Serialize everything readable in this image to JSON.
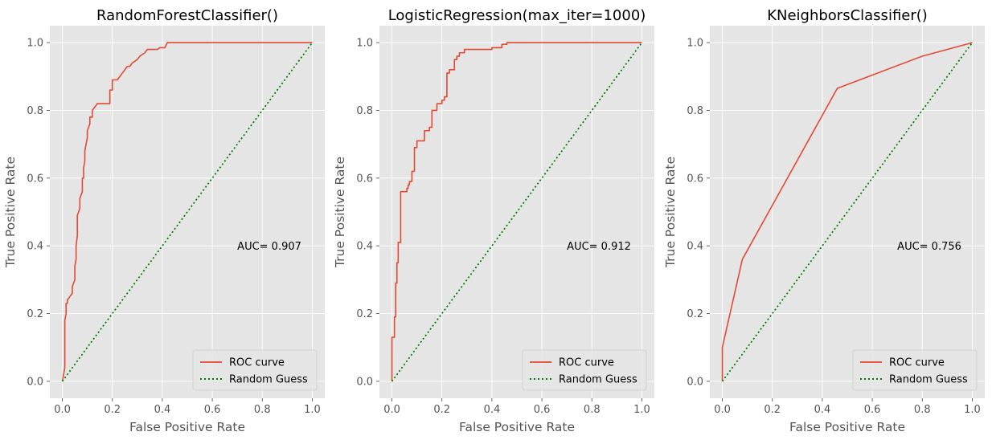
{
  "chart_data": [
    {
      "type": "line",
      "title": "RandomForestClassifier()",
      "xlabel": "False Positive Rate",
      "ylabel": "True Positive Rate",
      "xlim": [
        -0.05,
        1.05
      ],
      "ylim": [
        -0.05,
        1.05
      ],
      "xticks": [
        "0.0",
        "0.2",
        "0.4",
        "0.6",
        "0.8",
        "1.0"
      ],
      "yticks": [
        "0.0",
        "0.2",
        "0.4",
        "0.6",
        "0.8",
        "1.0"
      ],
      "grid": true,
      "legend_position": "lower-right",
      "annotation": "AUC= 0.907",
      "auc": 0.907,
      "series": [
        {
          "name": "ROC curve",
          "style": "solid",
          "color": "#e24a33",
          "x": [
            0,
            0.005,
            0.01,
            0.01,
            0.015,
            0.015,
            0.02,
            0.02,
            0.04,
            0.04,
            0.05,
            0.05,
            0.055,
            0.055,
            0.06,
            0.06,
            0.065,
            0.065,
            0.07,
            0.07,
            0.08,
            0.08,
            0.085,
            0.085,
            0.09,
            0.09,
            0.1,
            0.1,
            0.11,
            0.11,
            0.12,
            0.12,
            0.13,
            0.14,
            0.16,
            0.18,
            0.19,
            0.19,
            0.2,
            0.2,
            0.22,
            0.23,
            0.24,
            0.26,
            0.27,
            0.28,
            0.3,
            0.31,
            0.33,
            0.34,
            0.38,
            0.39,
            0.41,
            0.42,
            0.43,
            0.5,
            0.6,
            0.8,
            1.0
          ],
          "y": [
            0,
            0.02,
            0.04,
            0.18,
            0.2,
            0.23,
            0.23,
            0.24,
            0.26,
            0.28,
            0.3,
            0.34,
            0.36,
            0.4,
            0.43,
            0.49,
            0.5,
            0.5,
            0.51,
            0.54,
            0.56,
            0.6,
            0.6,
            0.63,
            0.65,
            0.68,
            0.72,
            0.74,
            0.76,
            0.78,
            0.78,
            0.8,
            0.81,
            0.82,
            0.82,
            0.82,
            0.82,
            0.86,
            0.86,
            0.89,
            0.89,
            0.9,
            0.91,
            0.93,
            0.93,
            0.94,
            0.95,
            0.96,
            0.97,
            0.98,
            0.98,
            0.985,
            0.985,
            1.0,
            1.0,
            1.0,
            1.0,
            1.0,
            1.0
          ]
        },
        {
          "name": "Random Guess",
          "style": "dotted",
          "color": "#008000",
          "x": [
            0,
            1
          ],
          "y": [
            0,
            1
          ]
        }
      ]
    },
    {
      "type": "line",
      "title": "LogisticRegression(max_iter=1000)",
      "xlabel": "False Positive Rate",
      "ylabel": "True Positive Rate",
      "xlim": [
        -0.05,
        1.05
      ],
      "ylim": [
        -0.05,
        1.05
      ],
      "xticks": [
        "0.0",
        "0.2",
        "0.4",
        "0.6",
        "0.8",
        "1.0"
      ],
      "yticks": [
        "0.0",
        "0.2",
        "0.4",
        "0.6",
        "0.8",
        "1.0"
      ],
      "grid": true,
      "legend_position": "lower-right",
      "annotation": "AUC= 0.912",
      "auc": 0.912,
      "series": [
        {
          "name": "ROC curve",
          "style": "solid",
          "color": "#e24a33",
          "x": [
            0,
            0,
            0.01,
            0.01,
            0.015,
            0.015,
            0.02,
            0.02,
            0.025,
            0.025,
            0.035,
            0.035,
            0.04,
            0.04,
            0.06,
            0.06,
            0.065,
            0.065,
            0.07,
            0.07,
            0.08,
            0.08,
            0.09,
            0.09,
            0.1,
            0.1,
            0.11,
            0.11,
            0.13,
            0.13,
            0.15,
            0.15,
            0.16,
            0.16,
            0.17,
            0.17,
            0.18,
            0.18,
            0.2,
            0.2,
            0.21,
            0.21,
            0.22,
            0.22,
            0.23,
            0.23,
            0.25,
            0.25,
            0.26,
            0.26,
            0.27,
            0.27,
            0.29,
            0.29,
            0.3,
            0.3,
            0.4,
            0.4,
            0.44,
            0.44,
            0.46,
            0.46,
            0.6,
            0.8,
            1.0
          ],
          "y": [
            0,
            0.13,
            0.13,
            0.19,
            0.19,
            0.29,
            0.29,
            0.35,
            0.35,
            0.41,
            0.41,
            0.56,
            0.56,
            0.56,
            0.56,
            0.57,
            0.57,
            0.58,
            0.58,
            0.59,
            0.59,
            0.62,
            0.62,
            0.69,
            0.69,
            0.71,
            0.71,
            0.71,
            0.71,
            0.74,
            0.74,
            0.75,
            0.75,
            0.8,
            0.8,
            0.8,
            0.8,
            0.82,
            0.82,
            0.83,
            0.83,
            0.84,
            0.84,
            0.91,
            0.91,
            0.92,
            0.92,
            0.95,
            0.95,
            0.96,
            0.96,
            0.97,
            0.97,
            0.98,
            0.98,
            0.98,
            0.98,
            0.985,
            0.985,
            0.995,
            0.995,
            1.0,
            1.0,
            1.0,
            1.0
          ]
        },
        {
          "name": "Random Guess",
          "style": "dotted",
          "color": "#008000",
          "x": [
            0,
            1
          ],
          "y": [
            0,
            1
          ]
        }
      ]
    },
    {
      "type": "line",
      "title": "KNeighborsClassifier()",
      "xlabel": "False Positive Rate",
      "ylabel": "True Positive Rate",
      "xlim": [
        -0.05,
        1.05
      ],
      "ylim": [
        -0.05,
        1.05
      ],
      "xticks": [
        "0.0",
        "0.2",
        "0.4",
        "0.6",
        "0.8",
        "1.0"
      ],
      "yticks": [
        "0.0",
        "0.2",
        "0.4",
        "0.6",
        "0.8",
        "1.0"
      ],
      "grid": true,
      "legend_position": "lower-right",
      "annotation": "AUC= 0.756",
      "auc": 0.756,
      "series": [
        {
          "name": "ROC curve",
          "style": "solid",
          "color": "#e24a33",
          "x": [
            0,
            0,
            0.08,
            0.46,
            0.8,
            1.0
          ],
          "y": [
            0,
            0.1,
            0.36,
            0.865,
            0.96,
            1.0
          ]
        },
        {
          "name": "Random Guess",
          "style": "dotted",
          "color": "#008000",
          "x": [
            0,
            1
          ],
          "y": [
            0,
            1
          ]
        }
      ]
    }
  ],
  "colors": {
    "axes_background": "#e5e5e5",
    "grid": "#ffffff",
    "tick_label": "#555555",
    "title": "#000000",
    "annotation": "#000000",
    "legend_frame": "#cccccc"
  }
}
